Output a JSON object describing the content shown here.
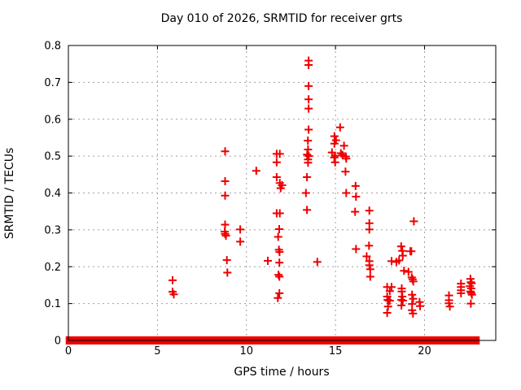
{
  "chart_data": {
    "type": "scatter",
    "title": "Day 010 of 2026, SRMTID for receiver grts",
    "xlabel": "GPS time / hours",
    "ylabel": "SRMTID / TECUs",
    "xlim": [
      0,
      24
    ],
    "ylim": [
      0,
      0.8
    ],
    "xticks": [
      {
        "v": 0,
        "label": "0"
      },
      {
        "v": 5,
        "label": "5"
      },
      {
        "v": 10,
        "label": "10"
      },
      {
        "v": 15,
        "label": "15"
      },
      {
        "v": 20,
        "label": "20"
      }
    ],
    "yticks": [
      {
        "v": 0.0,
        "label": "0"
      },
      {
        "v": 0.1,
        "label": "0.1"
      },
      {
        "v": 0.2,
        "label": "0.2"
      },
      {
        "v": 0.3,
        "label": "0.3"
      },
      {
        "v": 0.4,
        "label": "0.4"
      },
      {
        "v": 0.5,
        "label": "0.5"
      },
      {
        "v": 0.6,
        "label": "0.6"
      },
      {
        "v": 0.7,
        "label": "0.7"
      },
      {
        "v": 0.8,
        "label": "0.8"
      }
    ],
    "grid": true,
    "legend": false,
    "marker": "plus",
    "colors": {
      "marker": "#ee0000",
      "grid": "#a0a0a0",
      "frame": "#000000",
      "text": "#000000"
    },
    "series": [
      {
        "name": "SRMTID",
        "points": [
          [
            5.85,
            0.163
          ],
          [
            5.85,
            0.132
          ],
          [
            5.92,
            0.125
          ],
          [
            8.8,
            0.513
          ],
          [
            8.8,
            0.432
          ],
          [
            8.8,
            0.393
          ],
          [
            8.8,
            0.314
          ],
          [
            8.78,
            0.295
          ],
          [
            8.8,
            0.289
          ],
          [
            8.85,
            0.284
          ],
          [
            8.9,
            0.218
          ],
          [
            8.93,
            0.184
          ],
          [
            9.65,
            0.301
          ],
          [
            9.65,
            0.268
          ],
          [
            10.55,
            0.46
          ],
          [
            11.2,
            0.216
          ],
          [
            11.7,
            0.506
          ],
          [
            11.87,
            0.506
          ],
          [
            11.7,
            0.483
          ],
          [
            11.7,
            0.443
          ],
          [
            11.87,
            0.427
          ],
          [
            12.0,
            0.421
          ],
          [
            11.92,
            0.413
          ],
          [
            11.7,
            0.345
          ],
          [
            11.87,
            0.345
          ],
          [
            11.84,
            0.302
          ],
          [
            11.78,
            0.281
          ],
          [
            11.82,
            0.246
          ],
          [
            11.86,
            0.24
          ],
          [
            11.85,
            0.211
          ],
          [
            11.8,
            0.178
          ],
          [
            11.85,
            0.173
          ],
          [
            11.85,
            0.128
          ],
          [
            11.76,
            0.115
          ],
          [
            13.34,
            0.4
          ],
          [
            13.4,
            0.443
          ],
          [
            13.4,
            0.354
          ],
          [
            13.41,
            0.504
          ],
          [
            13.45,
            0.542
          ],
          [
            13.46,
            0.518
          ],
          [
            13.46,
            0.491
          ],
          [
            13.46,
            0.482
          ],
          [
            13.49,
            0.759
          ],
          [
            13.49,
            0.747
          ],
          [
            13.49,
            0.69
          ],
          [
            13.49,
            0.654
          ],
          [
            13.49,
            0.629
          ],
          [
            13.49,
            0.572
          ],
          [
            13.5,
            0.5
          ],
          [
            13.98,
            0.213
          ],
          [
            14.8,
            0.51
          ],
          [
            14.93,
            0.496
          ],
          [
            14.94,
            0.554
          ],
          [
            14.94,
            0.534
          ],
          [
            14.98,
            0.501
          ],
          [
            14.98,
            0.483
          ],
          [
            15.03,
            0.543
          ],
          [
            15.26,
            0.578
          ],
          [
            15.3,
            0.508
          ],
          [
            15.39,
            0.503
          ],
          [
            15.48,
            0.528
          ],
          [
            15.58,
            0.499
          ],
          [
            15.6,
            0.493
          ],
          [
            15.56,
            0.458
          ],
          [
            15.6,
            0.4
          ],
          [
            16.1,
            0.349
          ],
          [
            16.13,
            0.419
          ],
          [
            16.15,
            0.39
          ],
          [
            16.15,
            0.248
          ],
          [
            16.75,
            0.228
          ],
          [
            16.88,
            0.257
          ],
          [
            16.9,
            0.352
          ],
          [
            16.9,
            0.318
          ],
          [
            16.9,
            0.301
          ],
          [
            16.9,
            0.215
          ],
          [
            16.9,
            0.204
          ],
          [
            16.95,
            0.193
          ],
          [
            16.95,
            0.173
          ],
          [
            17.9,
            0.145
          ],
          [
            17.9,
            0.119
          ],
          [
            17.9,
            0.075
          ],
          [
            17.93,
            0.11
          ],
          [
            17.95,
            0.092
          ],
          [
            18.0,
            0.108
          ],
          [
            18.05,
            0.134
          ],
          [
            18.05,
            0.108
          ],
          [
            18.15,
            0.215
          ],
          [
            18.15,
            0.145
          ],
          [
            18.42,
            0.213
          ],
          [
            18.57,
            0.217
          ],
          [
            18.69,
            0.255
          ],
          [
            18.75,
            0.243
          ],
          [
            18.78,
            0.23
          ],
          [
            18.85,
            0.189
          ],
          [
            18.72,
            0.141
          ],
          [
            18.72,
            0.133
          ],
          [
            18.75,
            0.119
          ],
          [
            18.7,
            0.11
          ],
          [
            18.78,
            0.108
          ],
          [
            18.7,
            0.095
          ],
          [
            19.1,
            0.186
          ],
          [
            19.2,
            0.242
          ],
          [
            19.26,
            0.242
          ],
          [
            19.4,
            0.323
          ],
          [
            19.28,
            0.171
          ],
          [
            19.33,
            0.166
          ],
          [
            19.37,
            0.16
          ],
          [
            19.3,
            0.124
          ],
          [
            19.36,
            0.113
          ],
          [
            19.3,
            0.099
          ],
          [
            19.3,
            0.082
          ],
          [
            19.35,
            0.073
          ],
          [
            19.72,
            0.104
          ],
          [
            19.75,
            0.093
          ],
          [
            21.37,
            0.122
          ],
          [
            21.37,
            0.109
          ],
          [
            21.37,
            0.101
          ],
          [
            21.42,
            0.092
          ],
          [
            22.05,
            0.154
          ],
          [
            22.05,
            0.145
          ],
          [
            22.05,
            0.136
          ],
          [
            22.05,
            0.128
          ],
          [
            22.55,
            0.147
          ],
          [
            22.58,
            0.167
          ],
          [
            22.58,
            0.133
          ],
          [
            22.6,
            0.158
          ],
          [
            22.6,
            0.1
          ],
          [
            22.62,
            0.141
          ],
          [
            22.63,
            0.129
          ],
          [
            22.64,
            0.155
          ],
          [
            22.66,
            0.124
          ]
        ]
      }
    ],
    "baseline_at_y0_segments_hours": [
      [
        0.08,
        0.35
      ],
      [
        0.45,
        2.62
      ],
      [
        2.75,
        12.5
      ],
      [
        12.6,
        13.45
      ],
      [
        13.56,
        15.32
      ],
      [
        15.45,
        16.21
      ],
      [
        16.32,
        16.95
      ],
      [
        17.08,
        17.96
      ],
      [
        18.08,
        18.79
      ],
      [
        18.91,
        19.69
      ],
      [
        19.79,
        20.1
      ],
      [
        20.3,
        21.36
      ],
      [
        21.46,
        22.56
      ],
      [
        22.68,
        22.87
      ]
    ]
  }
}
